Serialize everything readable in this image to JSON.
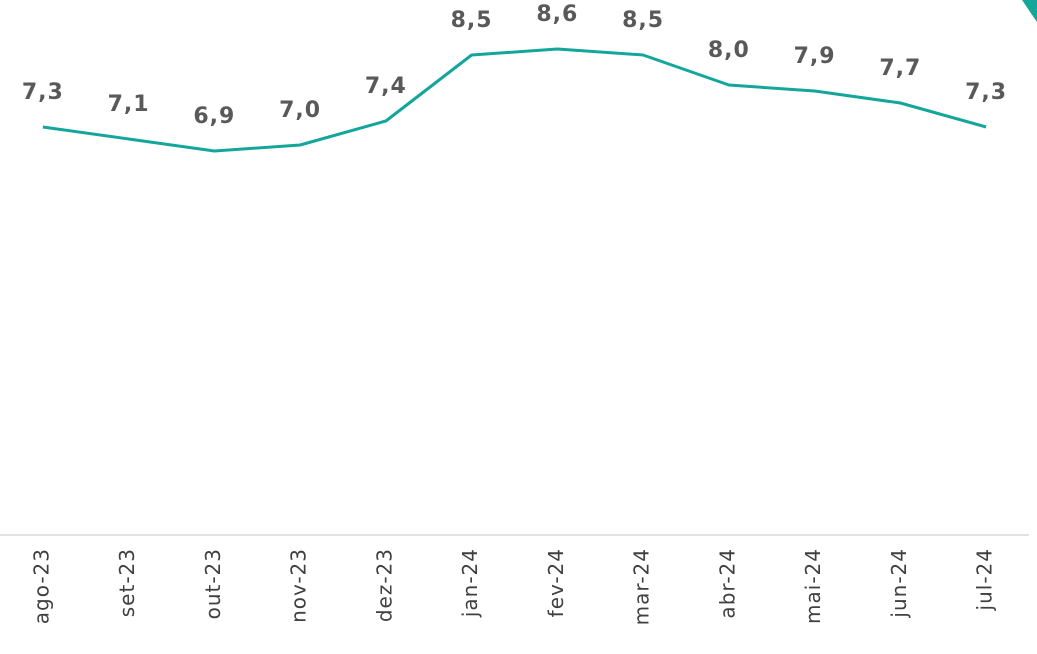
{
  "chart_data": {
    "type": "line",
    "categories": [
      "ago-23",
      "set-23",
      "out-23",
      "nov-23",
      "dez-23",
      "jan-24",
      "fev-24",
      "mar-24",
      "abr-24",
      "mai-24",
      "jun-24",
      "jul-24"
    ],
    "values": [
      7.3,
      7.1,
      6.9,
      7.0,
      7.4,
      8.5,
      8.6,
      8.5,
      8.0,
      7.9,
      7.7,
      7.3
    ],
    "value_labels": [
      "7,3",
      "7,1",
      "6,9",
      "7,0",
      "7,4",
      "8,5",
      "8,6",
      "8,5",
      "8,0",
      "7,9",
      "7,7",
      "7,3"
    ],
    "color": "#14a69b",
    "ylim": [
      0.5,
      9.5
    ]
  }
}
